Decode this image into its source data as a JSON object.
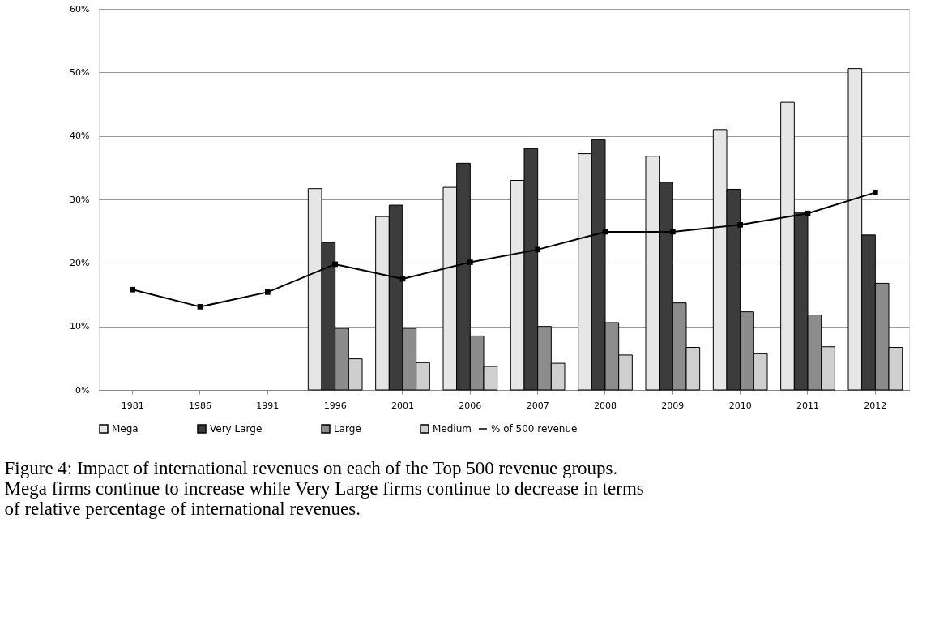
{
  "chart_data": {
    "type": "bar",
    "categories": [
      "1981",
      "1986",
      "1991",
      "1996",
      "2001",
      "2006",
      "2007",
      "2008",
      "2009",
      "2010",
      "2011",
      "2012"
    ],
    "series": [
      {
        "name": "Mega",
        "color": "#e6e6e6",
        "values": [
          null,
          null,
          null,
          31.7,
          27.3,
          31.9,
          33.0,
          37.2,
          36.8,
          41.0,
          45.3,
          50.6
        ]
      },
      {
        "name": "Very Large",
        "color": "#3c3c3c",
        "values": [
          null,
          null,
          null,
          23.2,
          29.1,
          35.7,
          38.0,
          39.4,
          32.7,
          31.6,
          28.0,
          24.4
        ]
      },
      {
        "name": "Large",
        "color": "#8c8c8c",
        "values": [
          null,
          null,
          null,
          9.7,
          9.7,
          8.5,
          10.0,
          10.6,
          13.7,
          12.3,
          11.8,
          16.8
        ]
      },
      {
        "name": "Medium",
        "color": "#cfcfcf",
        "values": [
          null,
          null,
          null,
          4.9,
          4.3,
          3.7,
          4.2,
          5.5,
          6.7,
          5.7,
          6.8,
          6.7
        ]
      },
      {
        "name": "% of 500 revenue",
        "type": "line",
        "color": "#000000",
        "marker": "square",
        "line_style": "solid",
        "values": [
          15.8,
          13.1,
          15.4,
          19.8,
          17.5,
          20.1,
          22.1,
          24.9,
          24.9,
          26.0,
          27.8,
          31.1
        ]
      }
    ],
    "ylim": [
      0,
      60
    ],
    "yticks": [
      {
        "value": 0,
        "label": "0%"
      },
      {
        "value": 10,
        "label": "10%"
      },
      {
        "value": 20,
        "label": "20%"
      },
      {
        "value": 30,
        "label": "30%"
      },
      {
        "value": 40,
        "label": "40%"
      },
      {
        "value": 50,
        "label": "50%"
      },
      {
        "value": 60,
        "label": "60%"
      }
    ],
    "grid": "y",
    "legend": "bottom",
    "annotations": [
      "Figure 4: Impact of international revenues on each of the Top 500 revenue groups. Mega firms continue to increase while Very Large firms continue to decrease in terms of relative percentage of international revenues."
    ]
  }
}
